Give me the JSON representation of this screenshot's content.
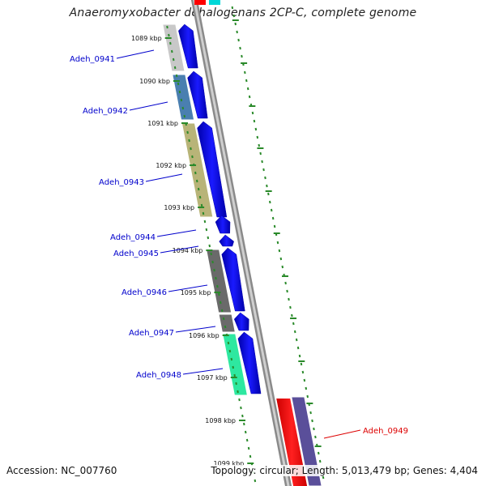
{
  "title": "Anaeromyxobacter dehalogenans 2CP-C, complete genome",
  "accession_text": "Accession: NC_007760",
  "topology_text": "Topology: circular; Length: 5,013,479 bp; Genes: 4,404",
  "kbp_ticks": [
    "1089 kbp",
    "1090 kbp",
    "1091 kbp",
    "1092 kbp",
    "1093 kbp",
    "1094 kbp",
    "1095 kbp",
    "1096 kbp",
    "1097 kbp",
    "1098 kbp",
    "1099 kbp"
  ],
  "genes": [
    {
      "name": "Adeh_0941",
      "color": "#0000cc"
    },
    {
      "name": "Adeh_0942",
      "color": "#0000cc"
    },
    {
      "name": "Adeh_0943",
      "color": "#0000cc"
    },
    {
      "name": "Adeh_0944",
      "color": "#0000cc"
    },
    {
      "name": "Adeh_0945",
      "color": "#0000cc"
    },
    {
      "name": "Adeh_0946",
      "color": "#0000cc"
    },
    {
      "name": "Adeh_0947",
      "color": "#0000cc"
    },
    {
      "name": "Adeh_0948",
      "color": "#0000cc"
    },
    {
      "name": "Adeh_0949",
      "color": "#dd0000"
    }
  ],
  "colors": {
    "backbone": "#8c8c8c",
    "forward_cds": "#0000ee",
    "reverse_cds": "#ff0000",
    "tick": "#2a8a2a",
    "cog_0941": "#c8c8c8",
    "cog_0942": "#4a7fb0",
    "cog_0943": "#b8b478",
    "cog_0946": "#6a6a6a",
    "cog_0947": "#6a6a6a",
    "cog_0948": "#2ee8a0",
    "cog_0949": "#5a4f9a",
    "top_cyan": "#00d8d8"
  }
}
